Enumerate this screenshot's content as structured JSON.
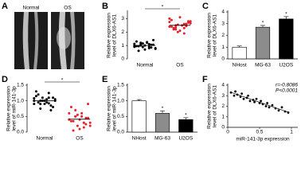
{
  "image_panel": {
    "panel": "A",
    "labels": [
      "Normal",
      "OS"
    ]
  },
  "chart_data": [
    {
      "type": "strip",
      "panel": "B",
      "ylabel": [
        "Relative expression",
        "level of DLX6-AS1"
      ],
      "categories": [
        "Normal",
        "OS"
      ],
      "colors": [
        "#000000",
        "#e8202a"
      ],
      "values": [
        [
          0.9,
          1.1,
          1.0,
          0.8,
          1.2,
          0.95,
          1.05,
          0.7,
          1.3,
          0.85,
          1.15,
          1.0,
          0.9,
          1.1,
          0.75,
          1.25,
          0.6,
          1.4,
          1.0,
          0.95,
          1.05,
          0.88,
          1.12,
          0.8,
          1.2
        ],
        [
          2.4,
          2.6,
          2.2,
          2.8,
          2.5,
          2.3,
          2.7,
          2.1,
          2.9,
          2.45,
          2.55,
          3.0,
          1.9,
          2.35,
          2.65,
          2.5,
          2.2,
          2.8,
          3.1,
          2.4,
          2.6,
          2.0,
          2.75,
          2.3,
          2.5
        ]
      ],
      "significance": "*",
      "ylim": [
        0,
        3.5
      ],
      "yticks": [
        0,
        1,
        2,
        3
      ]
    },
    {
      "type": "bar",
      "panel": "C",
      "ylabel": [
        "Relative expression",
        "level of DLX6-AS1"
      ],
      "categories": [
        "NHost",
        "MG-63",
        "U2OS"
      ],
      "values": [
        1.0,
        2.7,
        3.4
      ],
      "errors": [
        0.1,
        0.15,
        0.2
      ],
      "colors": [
        "#ffffff",
        "#8c8c8c",
        "#000000"
      ],
      "significance": [
        null,
        "*",
        "*"
      ],
      "ylim": [
        0,
        4
      ],
      "yticks": [
        0,
        1,
        2,
        3,
        4
      ]
    },
    {
      "type": "strip",
      "panel": "D",
      "ylabel": [
        "Relative expression",
        "level of miR-141-3p"
      ],
      "categories": [
        "Normal",
        "OS"
      ],
      "colors": [
        "#000000",
        "#e8202a"
      ],
      "values": [
        [
          1.0,
          1.1,
          0.9,
          1.05,
          0.95,
          1.2,
          0.8,
          1.0,
          1.15,
          0.85,
          1.1,
          0.9,
          1.25,
          0.75,
          1.0,
          1.05,
          0.95,
          1.1,
          0.9,
          1.3,
          0.7,
          1.0,
          1.08,
          0.92,
          1.0
        ],
        [
          0.4,
          0.3,
          0.5,
          0.2,
          0.6,
          0.35,
          0.45,
          0.1,
          0.8,
          0.25,
          0.55,
          0.4,
          0.15,
          0.7,
          0.3,
          0.5,
          0.05,
          0.9,
          0.4,
          0.35,
          0.45,
          0.2,
          0.6,
          0.3,
          0.5
        ]
      ],
      "significance": "*",
      "ylim": [
        0,
        1.5
      ],
      "yticks": [
        {
          "value": 0,
          "label": "0.0"
        },
        0.5,
        {
          "value": 1,
          "label": "1.0"
        },
        1.5
      ]
    },
    {
      "type": "bar",
      "panel": "E",
      "ylabel": [
        "Relative expression",
        "level of miR-141-3p"
      ],
      "categories": [
        "NHost",
        "MG-63",
        "U2OS"
      ],
      "values": [
        1.0,
        0.6,
        0.4
      ],
      "errors": [
        0.04,
        0.08,
        0.06
      ],
      "colors": [
        "#ffffff",
        "#8c8c8c",
        "#000000"
      ],
      "significance": [
        null,
        "*",
        "*"
      ],
      "ylim": [
        0,
        1.5
      ],
      "yticks": [
        {
          "value": 0,
          "label": "0.0"
        },
        0.5,
        {
          "value": 1,
          "label": "1.0"
        },
        1.5
      ]
    },
    {
      "type": "scatter",
      "panel": "F",
      "ylabel": [
        "Relative expression",
        "level of DLX6-AS1"
      ],
      "xlabel": "miR-141-3p expression",
      "annotations": [
        "r=-0.8086",
        "P<0.0001"
      ],
      "x": [
        0.05,
        0.1,
        0.12,
        0.15,
        0.2,
        0.22,
        0.25,
        0.3,
        0.32,
        0.35,
        0.4,
        0.42,
        0.45,
        0.5,
        0.52,
        0.55,
        0.6,
        0.62,
        0.65,
        0.7,
        0.75,
        0.8,
        0.85,
        0.9,
        0.95
      ],
      "y": [
        3.3,
        3.0,
        3.4,
        3.1,
        2.9,
        3.2,
        2.7,
        2.8,
        3.0,
        2.5,
        2.6,
        2.4,
        2.7,
        2.3,
        2.5,
        2.2,
        2.0,
        2.3,
        1.9,
        2.1,
        1.8,
        1.6,
        1.9,
        1.5,
        1.4
      ],
      "color": "#000000",
      "xlim": [
        0,
        1.1
      ],
      "xticks": [
        0,
        0.5,
        1
      ],
      "ylim": [
        0,
        4
      ],
      "yticks": [
        0,
        1,
        2,
        3,
        4
      ]
    }
  ]
}
